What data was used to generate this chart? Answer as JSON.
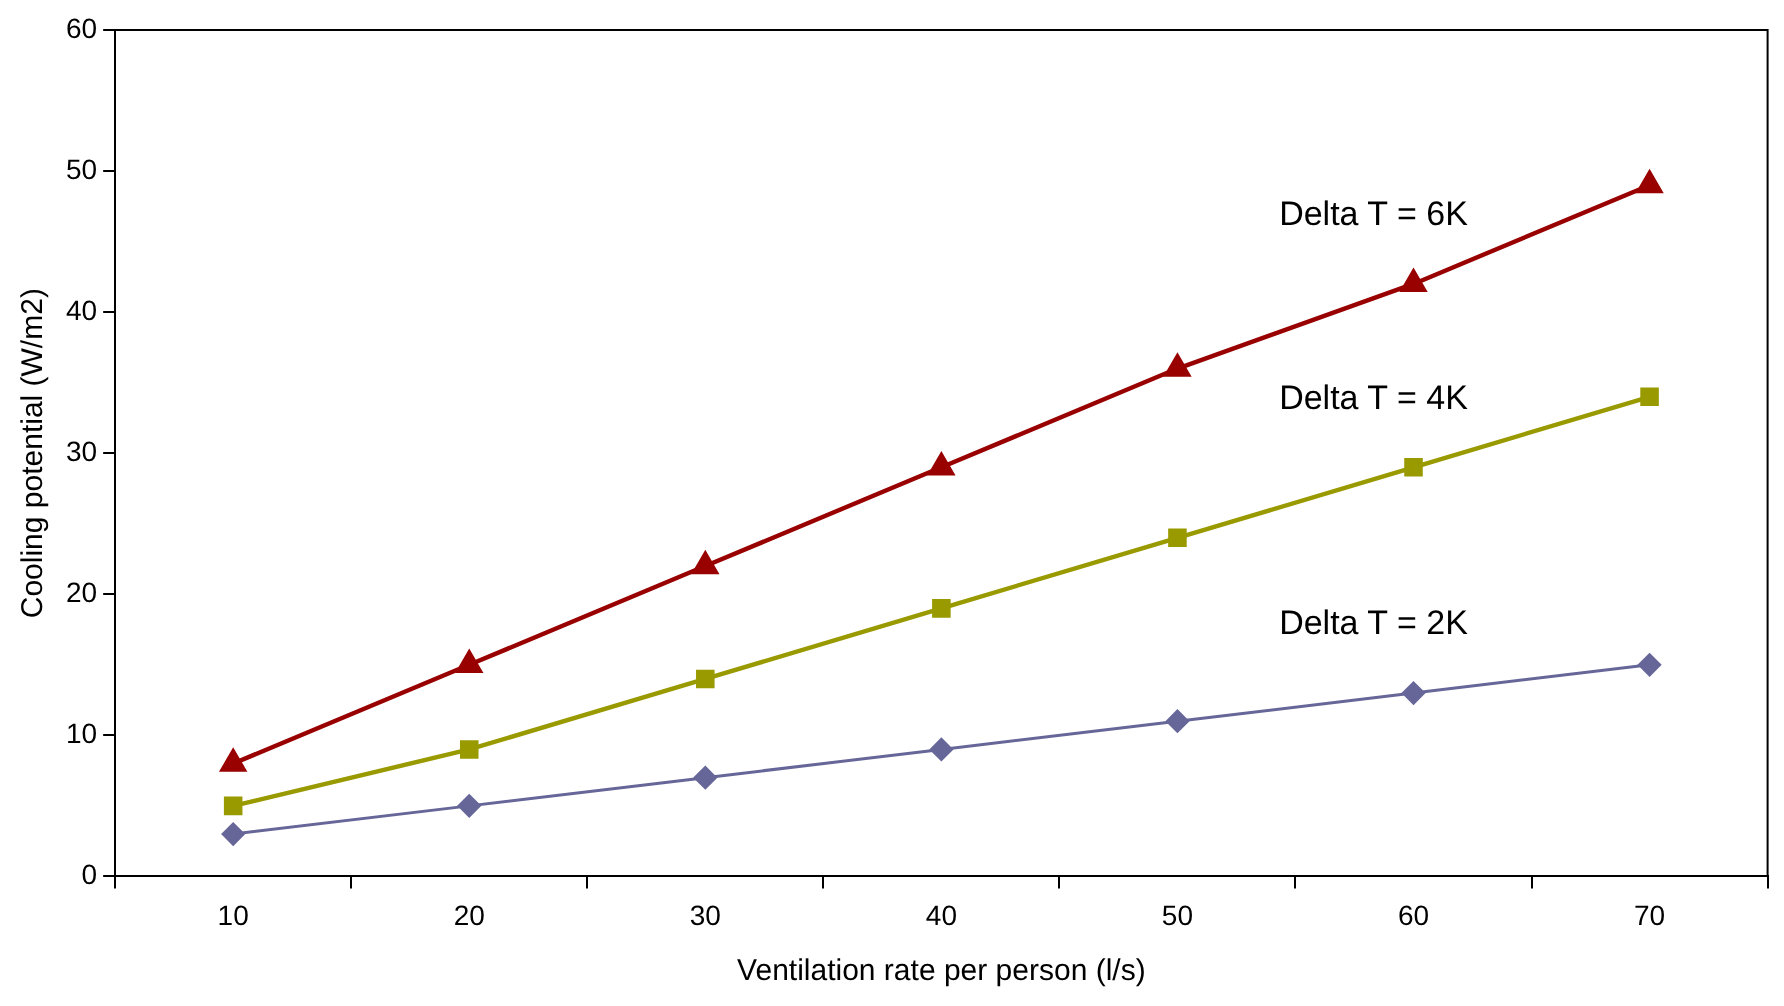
{
  "chart_data": {
    "type": "line",
    "xlabel": "Ventilation rate per person (l/s)",
    "ylabel": "Cooling potential (W/m2)",
    "categories": [
      "10",
      "20",
      "30",
      "40",
      "50",
      "60",
      "70"
    ],
    "series": [
      {
        "name": "Delta T = 6K",
        "color": "#990000",
        "marker": "triangle",
        "values": [
          8,
          15,
          22,
          29,
          36,
          42,
          49
        ]
      },
      {
        "name": "Delta T = 4K",
        "color": "#999900",
        "marker": "square",
        "values": [
          5,
          9,
          14,
          19,
          24,
          29,
          34
        ]
      },
      {
        "name": "Delta T = 2K",
        "color": "#666699",
        "marker": "diamond",
        "values": [
          3,
          5,
          7,
          9,
          11,
          13,
          15
        ]
      }
    ],
    "ylim": [
      0,
      60
    ],
    "yticks": [
      0,
      10,
      20,
      30,
      40,
      50,
      60
    ],
    "grid": false,
    "legend": false,
    "line_style": "solid"
  }
}
